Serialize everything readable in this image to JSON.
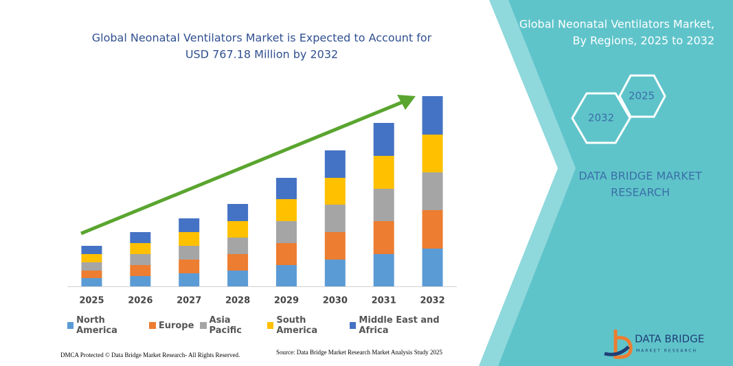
{
  "chart_data": {
    "type": "bar",
    "stacked": true,
    "title": [
      "Global Neonatal Ventilators Market is Expected to Account for",
      "USD 767.18 Million by 2032"
    ],
    "categories": [
      "2025",
      "2026",
      "2027",
      "2028",
      "2029",
      "2030",
      "2031",
      "2032"
    ],
    "series": [
      {
        "name": "North America",
        "color": "#5b9bd5",
        "values": [
          12,
          15,
          19,
          23,
          31,
          39,
          47,
          55
        ]
      },
      {
        "name": "Europe",
        "color": "#ed7d31",
        "values": [
          11,
          16,
          20,
          24,
          32,
          40,
          48,
          56
        ]
      },
      {
        "name": "Asia Pacific",
        "color": "#a5a5a5",
        "values": [
          12,
          16,
          20,
          24,
          32,
          40,
          47,
          55
        ]
      },
      {
        "name": "South America",
        "color": "#ffc000",
        "values": [
          12,
          16,
          20,
          24,
          32,
          39,
          48,
          55
        ]
      },
      {
        "name": "Middle East and Africa",
        "color": "#4472c4",
        "values": [
          12,
          16,
          20,
          25,
          31,
          40,
          48,
          56
        ]
      }
    ]
  },
  "panel": {
    "title": [
      "Global Neonatal Ventilators Market,",
      "By Regions, 2025 to 2032"
    ],
    "hexagons": [
      "2025",
      "2032"
    ],
    "brand": [
      "DATA BRIDGE MARKET",
      "RESEARCH"
    ]
  },
  "logo": {
    "name": "DATA BRIDGE",
    "tagline": "MARKET RESEARCH"
  },
  "footer": {
    "dmca": "DMCA Protected © Data Bridge Market Research- All Rights Reserved.",
    "source": "Source: Data Bridge Market Research Market Analysis Study 2025"
  }
}
